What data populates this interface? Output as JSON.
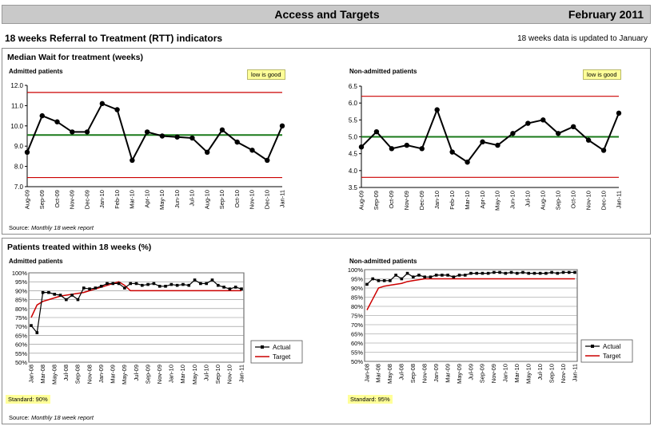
{
  "header": {
    "title": "Access and Targets",
    "date": "February 2011"
  },
  "section": {
    "title": "18 weeks Referral to Treatment (RTT) indicators",
    "update_note": "18 weeks data is updated to January"
  },
  "panel1": {
    "title": "Median Wait for treatment (weeks)",
    "source_label": "Source:",
    "source_text": "Monthly 18 week report"
  },
  "panel2": {
    "title": "Patients treated within 18 weeks (%)",
    "source_label": "Source:",
    "source_text": "Monthly 18 week report"
  },
  "colors": {
    "series": "#000000",
    "red_line": "#cc0000",
    "green_line": "#1a7a1a",
    "badge_bg": "#ffff99"
  },
  "chart_data": [
    {
      "type": "line",
      "subtitle": "Admitted patients",
      "badge": "low is good",
      "categories": [
        "Aug-09",
        "Sep-09",
        "Oct-09",
        "Nov-09",
        "Dec-09",
        "Jan-10",
        "Feb-10",
        "Mar-10",
        "Apr-10",
        "May-10",
        "Jun-10",
        "Jul-10",
        "Aug-10",
        "Sep-10",
        "Oct-10",
        "Nov-10",
        "Dec-10",
        "Jan-11"
      ],
      "values": [
        8.7,
        10.5,
        10.2,
        9.7,
        9.7,
        11.1,
        10.8,
        8.3,
        9.7,
        9.5,
        9.45,
        9.4,
        8.7,
        9.8,
        9.2,
        8.8,
        8.3,
        10.0
      ],
      "reference_lines": {
        "upper": 11.65,
        "center": 9.55,
        "lower": 7.45
      },
      "ylim": [
        7.0,
        12.0
      ],
      "yticks": [
        "7.0",
        "8.0",
        "9.0",
        "10.0",
        "11.0",
        "12.0"
      ]
    },
    {
      "type": "line",
      "subtitle": "Non-admitted patients",
      "badge": "low is good",
      "categories": [
        "Aug-09",
        "Sep-09",
        "Oct-09",
        "Nov-09",
        "Dec-09",
        "Jan-10",
        "Feb-10",
        "Mar-10",
        "Apr-10",
        "May-10",
        "Jun-10",
        "Jul-10",
        "Aug-10",
        "Sep-10",
        "Oct-10",
        "Nov-10",
        "Dec-10",
        "Jan-11"
      ],
      "values": [
        4.7,
        5.15,
        4.65,
        4.75,
        4.65,
        5.8,
        4.55,
        4.25,
        4.85,
        4.75,
        5.1,
        5.4,
        5.5,
        5.1,
        5.3,
        4.9,
        4.6,
        5.7
      ],
      "reference_lines": {
        "upper": 6.2,
        "center": 5.0,
        "lower": 3.8
      },
      "ylim": [
        3.5,
        6.5
      ],
      "yticks": [
        "3.5",
        "4.0",
        "4.5",
        "5.0",
        "5.5",
        "6.0",
        "6.5"
      ]
    },
    {
      "type": "line",
      "subtitle": "Admitted patients",
      "standard": "Standard: 90%",
      "xlabels": [
        "Jan-08",
        "Mar-08",
        "May-08",
        "Jul-08",
        "Sep-08",
        "Nov-08",
        "Jan-09",
        "Mar-09",
        "May-09",
        "Jul-09",
        "Sep-09",
        "Nov-09",
        "Jan-10",
        "Mar-10",
        "May-10",
        "Jul-10",
        "Sep-10",
        "Nov-10",
        "Jan-11"
      ],
      "series": [
        {
          "name": "Actual",
          "values": [
            70.5,
            66.5,
            89,
            89,
            88,
            87.5,
            85,
            87.5,
            85,
            91.5,
            91,
            91.5,
            92.5,
            94,
            94,
            94,
            91.5,
            94,
            94,
            93,
            93.5,
            94,
            92.5,
            92.5,
            93.5,
            93,
            93.5,
            93,
            96,
            94,
            94,
            96,
            93,
            92,
            91,
            92,
            91
          ]
        },
        {
          "name": "Target",
          "values": [
            75,
            82,
            84,
            85,
            86,
            87,
            87.5,
            88,
            88.5,
            89,
            90,
            91,
            92,
            93,
            94,
            95,
            93,
            90,
            90,
            90,
            90,
            90,
            90,
            90,
            90,
            90,
            90,
            90,
            90,
            90,
            90,
            90,
            90,
            90,
            90,
            90,
            90
          ]
        }
      ],
      "ylim": [
        50,
        100
      ],
      "yticks": [
        "50%",
        "55%",
        "60%",
        "65%",
        "70%",
        "75%",
        "80%",
        "85%",
        "90%",
        "95%",
        "100%"
      ]
    },
    {
      "type": "line",
      "subtitle": "Non-admitted patients",
      "standard": "Standard: 95%",
      "xlabels": [
        "Jan-08",
        "Mar-08",
        "May-08",
        "Jul-08",
        "Sep-08",
        "Nov-08",
        "Jan-09",
        "Mar-09",
        "May-09",
        "Jul-09",
        "Sep-09",
        "Nov-09",
        "Jan-10",
        "Mar-10",
        "May-10",
        "Jul-10",
        "Sep-10",
        "Nov-10",
        "Jan-11"
      ],
      "series": [
        {
          "name": "Actual",
          "values": [
            92,
            95,
            94,
            94,
            94,
            97,
            95,
            98,
            96,
            97,
            96,
            96,
            97,
            97,
            97,
            96,
            97,
            97,
            98,
            98,
            98,
            98,
            98.5,
            98.5,
            98,
            98.5,
            98,
            98.5,
            98,
            98,
            98,
            98,
            98.5,
            98,
            98.5,
            98.5,
            98.5
          ]
        },
        {
          "name": "Target",
          "values": [
            78,
            84,
            90,
            91,
            91.5,
            92,
            92.5,
            93.5,
            94,
            94.5,
            95,
            95,
            95,
            95,
            95,
            95,
            95,
            95,
            95,
            95,
            95,
            95,
            95,
            95,
            95,
            95,
            95,
            95,
            95,
            95,
            95,
            95,
            95,
            95,
            95,
            95,
            95
          ]
        }
      ],
      "ylim": [
        50,
        100
      ],
      "yticks": [
        "50%",
        "55%",
        "60%",
        "65%",
        "70%",
        "75%",
        "80%",
        "85%",
        "90%",
        "95%",
        "100%"
      ]
    }
  ]
}
